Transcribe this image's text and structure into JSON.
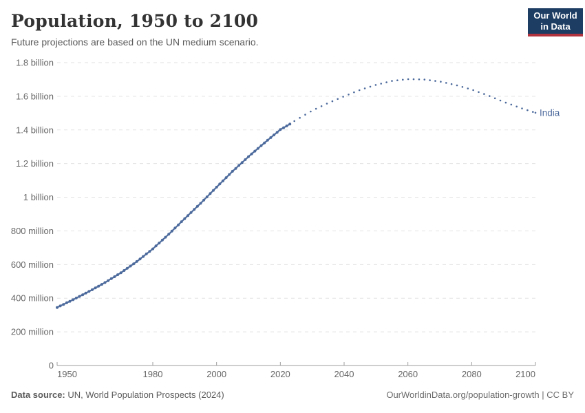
{
  "header": {
    "title": "Population, 1950 to 2100",
    "subtitle": "Future projections are based on the UN medium scenario.",
    "logo": {
      "line1": "Our World",
      "line2": "in Data",
      "bg_color": "#1d3d63",
      "accent_color": "#b0333d"
    }
  },
  "chart_data": {
    "type": "line",
    "title": "Population, 1950 to 2100",
    "xlabel": "",
    "ylabel": "",
    "x_range": [
      1950,
      2100
    ],
    "y_range_millions": [
      0,
      1800
    ],
    "grid": true,
    "legend_position": "inline-right-of-line",
    "values_unit": "millions of people",
    "x_ticks": [
      1950,
      1980,
      2000,
      2020,
      2040,
      2060,
      2080,
      2100
    ],
    "y_ticks": [
      {
        "value": 0,
        "label": "0"
      },
      {
        "value": 200,
        "label": "200 million"
      },
      {
        "value": 400,
        "label": "400 million"
      },
      {
        "value": 600,
        "label": "600 million"
      },
      {
        "value": 800,
        "label": "800 million"
      },
      {
        "value": 1000,
        "label": "1 billion"
      },
      {
        "value": 1200,
        "label": "1.2 billion"
      },
      {
        "value": 1400,
        "label": "1.4 billion"
      },
      {
        "value": 1600,
        "label": "1.6 billion"
      },
      {
        "value": 1800,
        "label": "1.8 billion"
      }
    ],
    "projection_start_year": 2023,
    "series": [
      {
        "name": "India",
        "color": "#4C6A9C",
        "points": [
          [
            1950,
            345
          ],
          [
            1955,
            391
          ],
          [
            1960,
            440
          ],
          [
            1965,
            493
          ],
          [
            1970,
            551
          ],
          [
            1975,
            618
          ],
          [
            1980,
            693
          ],
          [
            1985,
            780
          ],
          [
            1990,
            873
          ],
          [
            1995,
            964
          ],
          [
            2000,
            1060
          ],
          [
            2005,
            1154
          ],
          [
            2010,
            1241
          ],
          [
            2015,
            1323
          ],
          [
            2020,
            1402
          ],
          [
            2023,
            1435
          ],
          [
            2025,
            1460
          ],
          [
            2030,
            1515
          ],
          [
            2035,
            1560
          ],
          [
            2040,
            1600
          ],
          [
            2045,
            1638
          ],
          [
            2050,
            1668
          ],
          [
            2055,
            1691
          ],
          [
            2060,
            1702
          ],
          [
            2065,
            1700
          ],
          [
            2070,
            1688
          ],
          [
            2075,
            1667
          ],
          [
            2080,
            1640
          ],
          [
            2085,
            1606
          ],
          [
            2090,
            1567
          ],
          [
            2095,
            1533
          ],
          [
            2100,
            1502
          ]
        ]
      }
    ],
    "colors": {
      "gridline": "#e2e2e2",
      "axis": "#9e9e9e",
      "tick_text": "#666666"
    }
  },
  "footer": {
    "source_label": "Data source:",
    "source_value": " UN, World Population Prospects (2024)",
    "attribution_link": "OurWorldinData.org/population-growth",
    "attribution_suffix": " | CC BY"
  }
}
